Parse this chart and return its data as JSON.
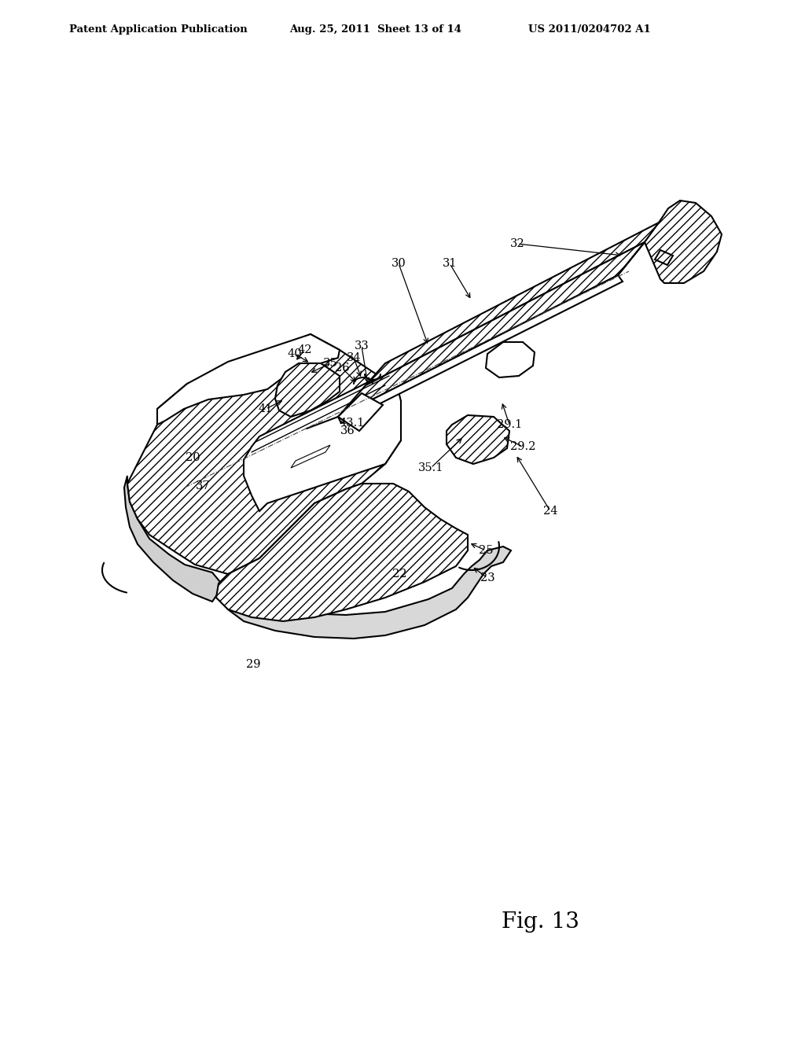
{
  "header_left": "Patent Application Publication",
  "header_center": "Aug. 25, 2011  Sheet 13 of 14",
  "header_right": "US 2011/0204702 A1",
  "figure_label": "Fig. 13",
  "bg": "#ffffff",
  "lc": "#000000"
}
